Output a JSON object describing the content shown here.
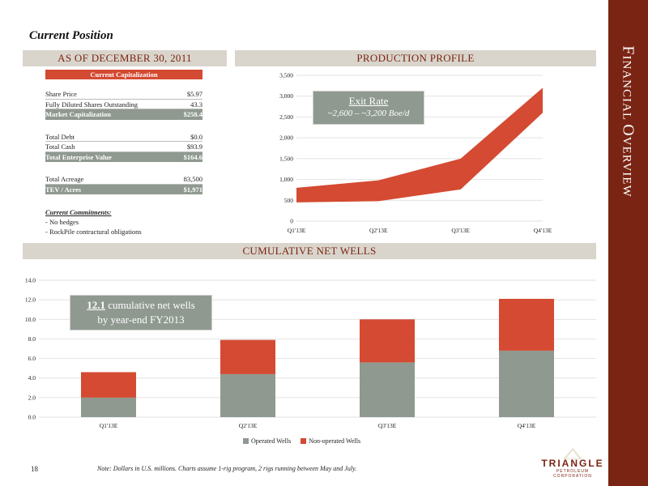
{
  "side_title": {
    "first_letter1": "F",
    "rest1": "INANCIAL ",
    "first_letter2": "O",
    "rest2": "VERVIEW"
  },
  "page_title": "Current Position",
  "headers": {
    "as_of": "AS OF DECEMBER 30, 2011",
    "production": "PRODUCTION PROFILE",
    "wells": "CUMULATIVE NET WELLS"
  },
  "capitalization": {
    "title": "Current Capitalization",
    "group1": [
      {
        "label": "Share Price",
        "value": "$5.97"
      },
      {
        "label": "Fully Diluted Shares Outstanding",
        "value": "43.3"
      }
    ],
    "market_cap": {
      "label": "Market Capitalization",
      "value": "$258.4"
    },
    "group2": [
      {
        "label": "Total Debt",
        "value": "$0.0"
      },
      {
        "label": "Total Cash",
        "value": "$93.9"
      }
    ],
    "ev": {
      "label": "Total Enterprise Value",
      "value": "$164.6"
    },
    "group3": [
      {
        "label": "Total Acreage",
        "value": "83,500"
      }
    ],
    "tev": {
      "label": "TEV / Acres",
      "value": "$1,971"
    }
  },
  "commitments": {
    "title": "Current Commitments:",
    "items": [
      "- No hedges",
      "- RockPile contractural obligations"
    ]
  },
  "exit_callout": {
    "title": "Exit Rate",
    "value": "~2,600 – ~3,200 Boe/d"
  },
  "wells_callout": {
    "number": "12.1",
    "line1_rest": " cumulative net wells",
    "line2": "by year-end FY2013"
  },
  "chart_data": [
    {
      "type": "area",
      "title": "",
      "categories": [
        "Q1'13E",
        "Q2'13E",
        "Q3'13E",
        "Q4'13E"
      ],
      "series": [
        {
          "values_low": [
            450,
            480,
            760,
            2600
          ],
          "values_high": [
            800,
            980,
            1500,
            3200
          ]
        }
      ],
      "ylim": [
        0,
        3500
      ],
      "yticks": [
        "0",
        "500",
        "1,000",
        "1,500",
        "2,000",
        "2,500",
        "3,000",
        "3,500"
      ],
      "grid": true,
      "color": "#d44a32"
    },
    {
      "type": "bar",
      "stacked": true,
      "title": "",
      "categories": [
        "Q1'13E",
        "Q2'13E",
        "Q3'13E",
        "Q4'13E"
      ],
      "series": [
        {
          "name": "Operated Wells",
          "values": [
            2.0,
            4.4,
            5.6,
            6.8
          ],
          "color": "#8f9990"
        },
        {
          "name": "Non-operated Wells",
          "values": [
            2.6,
            3.5,
            4.4,
            5.3
          ],
          "color": "#d44a32"
        }
      ],
      "ylim": [
        0,
        14
      ],
      "yticks": [
        "0.0",
        "2.0",
        "4.0",
        "6.0",
        "8.0",
        "10.0",
        "12.0",
        "14.0"
      ],
      "grid": true,
      "legend": "bottom"
    }
  ],
  "footer": {
    "page_number": "18",
    "note": "Note: Dollars in U.S. millions. Charts assume 1-rig program, 2 rigs running between May and July.",
    "logo_word": "TRIANGLE",
    "logo_sub": "PETROLEUM CORPORATION"
  }
}
